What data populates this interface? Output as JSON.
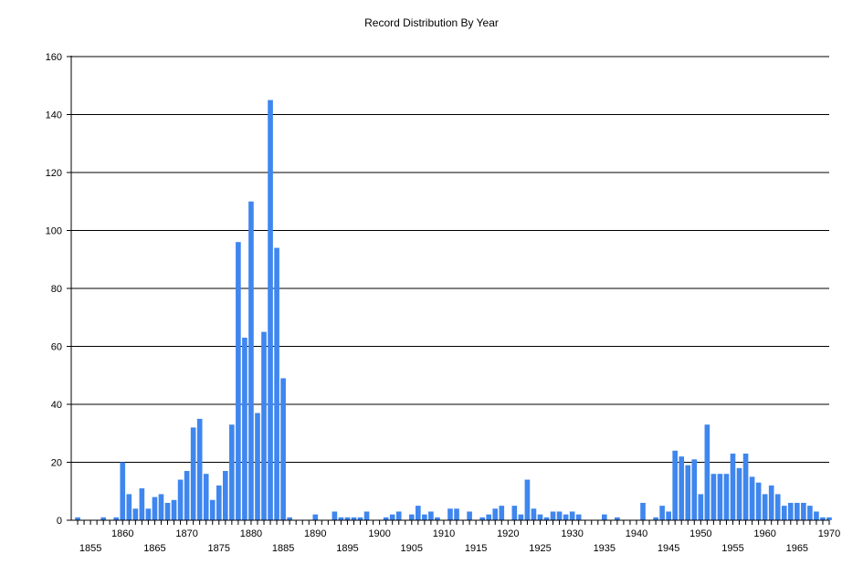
{
  "chart_data": {
    "type": "bar",
    "title": "Record Distribution By Year",
    "xlabel": "",
    "ylabel": "",
    "ylim": [
      0,
      160
    ],
    "xlim": [
      1852,
      1970
    ],
    "y_ticks": [
      0,
      20,
      40,
      60,
      80,
      100,
      120,
      140,
      160
    ],
    "x_ticks_upper": [
      1860,
      1870,
      1880,
      1890,
      1900,
      1910,
      1920,
      1930,
      1940,
      1950,
      1960,
      1970
    ],
    "x_ticks_lower": [
      1855,
      1865,
      1875,
      1885,
      1895,
      1905,
      1915,
      1925,
      1935,
      1945,
      1955,
      1965
    ],
    "grid": "horizontal",
    "bar_color": "#3F86EE",
    "x": [
      1853,
      1857,
      1859,
      1860,
      1861,
      1862,
      1863,
      1864,
      1865,
      1866,
      1867,
      1868,
      1869,
      1870,
      1871,
      1872,
      1873,
      1874,
      1875,
      1876,
      1877,
      1878,
      1879,
      1880,
      1881,
      1882,
      1883,
      1884,
      1885,
      1886,
      1890,
      1893,
      1894,
      1895,
      1896,
      1897,
      1898,
      1901,
      1902,
      1903,
      1905,
      1906,
      1907,
      1908,
      1909,
      1911,
      1912,
      1914,
      1916,
      1917,
      1918,
      1919,
      1921,
      1922,
      1923,
      1924,
      1925,
      1926,
      1927,
      1928,
      1929,
      1930,
      1931,
      1935,
      1937,
      1941,
      1943,
      1944,
      1945,
      1946,
      1947,
      1948,
      1949,
      1950,
      1951,
      1952,
      1953,
      1954,
      1955,
      1956,
      1957,
      1958,
      1959,
      1960,
      1961,
      1962,
      1963,
      1964,
      1965,
      1966,
      1967,
      1968,
      1969,
      1970
    ],
    "values": [
      1,
      1,
      1,
      20,
      9,
      4,
      11,
      4,
      8,
      9,
      6,
      7,
      14,
      17,
      32,
      35,
      16,
      7,
      12,
      17,
      33,
      96,
      63,
      110,
      37,
      65,
      145,
      94,
      49,
      1,
      2,
      3,
      1,
      1,
      1,
      1,
      3,
      1,
      2,
      3,
      2,
      5,
      2,
      3,
      1,
      4,
      4,
      3,
      1,
      2,
      4,
      5,
      5,
      2,
      14,
      4,
      2,
      1,
      3,
      3,
      2,
      3,
      2,
      2,
      1,
      6,
      1,
      5,
      3,
      24,
      22,
      19,
      21,
      9,
      33,
      16,
      16,
      16,
      23,
      18,
      23,
      15,
      13,
      9,
      12,
      9,
      5,
      6,
      6,
      6,
      5,
      3,
      1,
      1
    ]
  }
}
